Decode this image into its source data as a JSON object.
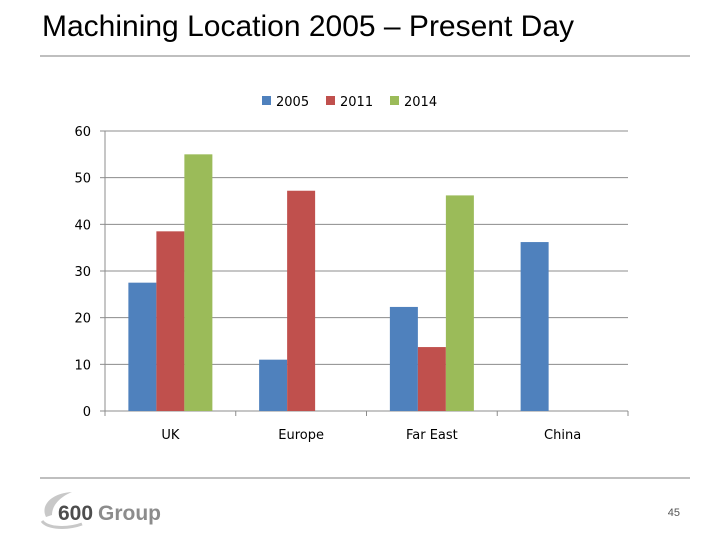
{
  "slide": {
    "title": "Machining Location 2005 – Present Day",
    "page_number": "45",
    "logo_text": "600Group"
  },
  "colors": {
    "series_2005": "#4f81bd",
    "series_2011": "#c0504d",
    "series_2014": "#9bbb59"
  },
  "chart_data": {
    "type": "bar",
    "title": "",
    "xlabel": "",
    "ylabel": "",
    "categories": [
      "UK",
      "Europe",
      "Far East",
      "China"
    ],
    "series": [
      {
        "name": "2005",
        "values": [
          27.5,
          11,
          22.3,
          36.2
        ],
        "color": "#4f81bd"
      },
      {
        "name": "2011",
        "values": [
          38.5,
          47.2,
          13.7,
          0
        ],
        "color": "#c0504d"
      },
      {
        "name": "2014",
        "values": [
          55,
          0,
          46.2,
          0
        ],
        "color": "#9bbb59"
      }
    ],
    "ylim": [
      0,
      60
    ],
    "yticks": [
      0,
      10,
      20,
      30,
      40,
      50,
      60
    ],
    "grid": true,
    "legend_position": "top"
  }
}
